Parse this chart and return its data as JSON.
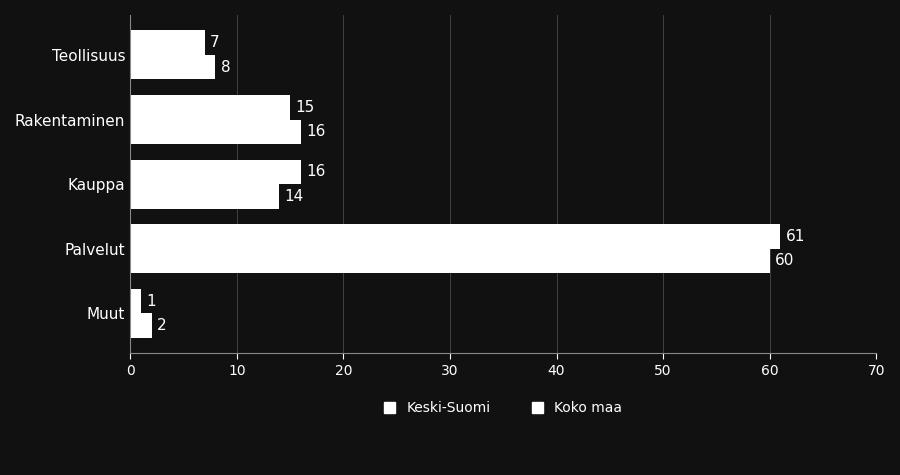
{
  "categories": [
    "Teollisuus",
    "Rakentaminen",
    "Kauppa",
    "Palvelut",
    "Muut"
  ],
  "keski_suomi": [
    8,
    16,
    14,
    60,
    2
  ],
  "koko_maa": [
    7,
    15,
    16,
    61,
    1
  ],
  "bar_color_keski": "#ffffff",
  "bar_color_koko": "#ffffff",
  "background_color": "#111111",
  "text_color": "#ffffff",
  "axis_color": "#888888",
  "xlim": [
    0,
    70
  ],
  "xticks": [
    0,
    10,
    20,
    30,
    40,
    50,
    60,
    70
  ],
  "legend_labels": [
    "Keski-Suomi",
    "Koko maa"
  ],
  "bar_height": 0.38,
  "label_fontsize": 11,
  "tick_fontsize": 10,
  "legend_fontsize": 10
}
